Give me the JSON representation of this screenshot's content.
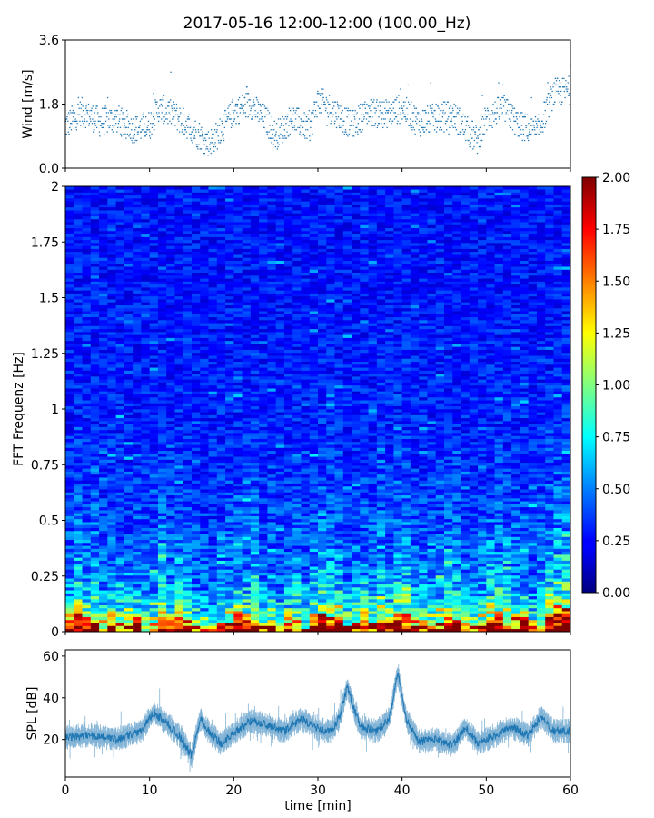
{
  "figure": {
    "title": "2017-05-16 12:00-12:00 (100.00_Hz)"
  },
  "chart_data": [
    {
      "type": "scatter",
      "name": "wind",
      "ylabel": "Wind [m/s]",
      "xlim": [
        0,
        60
      ],
      "ylim": [
        0,
        3.6
      ],
      "yticks": [
        "0.0",
        "1.8",
        "3.6"
      ],
      "color": "#1f77b4",
      "trend": {
        "x": [
          0,
          2,
          4,
          6,
          8,
          10,
          11,
          13,
          15,
          17,
          18,
          20,
          22,
          24,
          25,
          27,
          29,
          30,
          32,
          34,
          36,
          38,
          40,
          42,
          44,
          46,
          48,
          49,
          50,
          52,
          54,
          56,
          58,
          60
        ],
        "y": [
          1.2,
          1.6,
          1.3,
          1.4,
          1.1,
          1.2,
          1.7,
          1.5,
          1.1,
          0.7,
          0.9,
          1.6,
          1.8,
          1.3,
          0.9,
          1.4,
          1.1,
          1.9,
          1.6,
          1.2,
          1.6,
          1.5,
          1.7,
          1.3,
          1.4,
          1.5,
          1.0,
          0.8,
          1.4,
          1.7,
          1.2,
          1.0,
          2.1,
          2.2
        ]
      },
      "spread": 0.4,
      "points": 1400
    },
    {
      "type": "heatmap",
      "name": "spectrogram",
      "ylabel": "FFT Frequenz [Hz]",
      "xlim": [
        0,
        60
      ],
      "ylim": [
        0,
        2
      ],
      "yticks": [
        "0",
        "0.25",
        "0.5",
        "0.75",
        "1",
        "1.25",
        "1.5",
        "1.75",
        "2"
      ],
      "colormap": "jet",
      "colorbar": {
        "vmin": 0.0,
        "vmax": 2.0,
        "ticks": [
          "0.00",
          "0.25",
          "0.50",
          "0.75",
          "1.00",
          "1.25",
          "1.50",
          "1.75",
          "2.00"
        ]
      },
      "time_bins": 60,
      "freq_bins": 150
    },
    {
      "type": "line",
      "name": "spl",
      "ylabel": "SPL [dB]",
      "xlabel": "time [min]",
      "xlim": [
        0,
        60
      ],
      "ylim": [
        2,
        63
      ],
      "yticks": [
        "20",
        "40",
        "60"
      ],
      "xticks": [
        "0",
        "10",
        "20",
        "30",
        "40",
        "50",
        "60"
      ],
      "color": "#1f77b4",
      "trend": {
        "x": [
          0,
          3,
          6,
          9,
          10.5,
          12,
          13.5,
          15,
          16,
          17,
          18.5,
          20,
          22,
          24,
          26,
          28,
          30,
          31.5,
          32.5,
          33.5,
          35,
          37,
          38.5,
          39.5,
          40.5,
          42,
          44,
          46,
          47.5,
          49,
          51,
          53,
          55,
          56.5,
          58,
          60
        ],
        "y": [
          21,
          22,
          20,
          24,
          33,
          28,
          22,
          12,
          30,
          24,
          18,
          23,
          29,
          27,
          24,
          30,
          25,
          24,
          30,
          45,
          26,
          24,
          30,
          52,
          30,
          19,
          20,
          17,
          26,
          18,
          22,
          26,
          22,
          31,
          24,
          24
        ]
      },
      "spread": 4
    }
  ]
}
